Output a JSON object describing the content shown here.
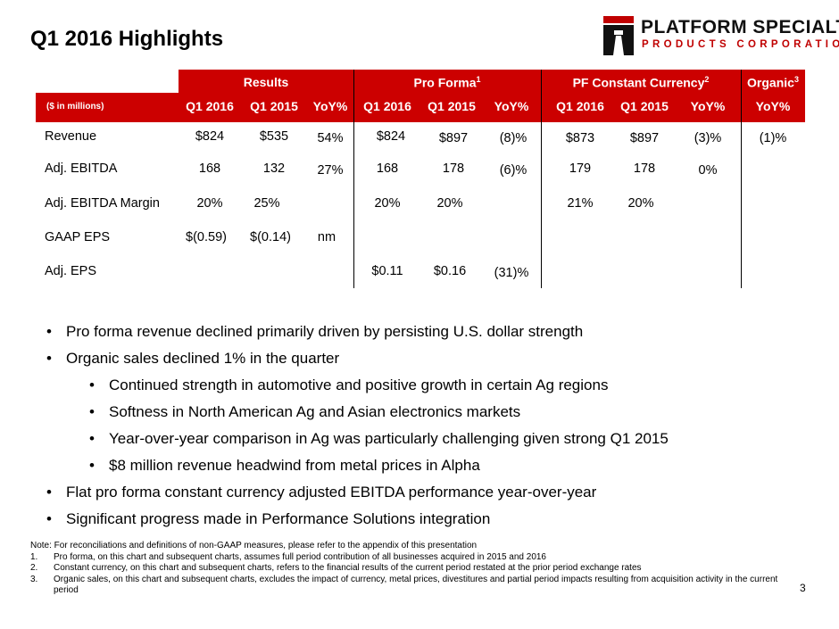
{
  "title": "Q1 2016 Highlights",
  "logo": {
    "line1": "PLATFORM SPECIALTY",
    "line2": "PRODUCTS CORPORATION"
  },
  "table": {
    "units": "($ in millions)",
    "groups": {
      "results": "Results",
      "pro_forma": "Pro Forma",
      "pro_forma_sup": "1",
      "pf_cc": "PF Constant Currency",
      "pf_cc_sup": "2",
      "organic": "Organic",
      "organic_sup": "3"
    },
    "columns": [
      "Q1 2016",
      "Q1 2015",
      "YoY%",
      "Q1 2016",
      "Q1 2015",
      "YoY%",
      "Q1 2016",
      "Q1 2015",
      "YoY%",
      "YoY%"
    ],
    "rows": [
      {
        "label": "Revenue",
        "cells": [
          "$824",
          "$535",
          "54%",
          "$824",
          "$897",
          "(8)%",
          "$873",
          "$897",
          "(3)%",
          "(1)%"
        ]
      },
      {
        "label": "Adj. EBITDA",
        "cells": [
          "168",
          "132",
          "27%",
          "168",
          "178",
          "(6)%",
          "179",
          "178",
          "0%",
          ""
        ]
      },
      {
        "label": "Adj. EBITDA Margin",
        "cells": [
          "20%",
          "25%",
          "",
          "20%",
          "20%",
          "",
          "21%",
          "20%",
          "",
          ""
        ]
      },
      {
        "label": "GAAP EPS",
        "cells": [
          "$(0.59)",
          "$(0.14)",
          "nm",
          "",
          "",
          "",
          "",
          "",
          "",
          ""
        ]
      },
      {
        "label": "Adj. EPS",
        "cells": [
          "",
          "",
          "",
          "$0.11",
          "$0.16",
          "(31)%",
          "",
          "",
          "",
          ""
        ]
      }
    ]
  },
  "bullets": [
    "Pro forma revenue declined primarily driven by persisting U.S. dollar strength",
    "Organic sales declined 1% in the quarter",
    "Continued strength in automotive and positive growth in certain Ag regions",
    "Softness in North American Ag and Asian electronics markets",
    "Year-over-year comparison in Ag was particularly challenging given strong Q1 2015",
    "$8 million revenue headwind from metal prices in Alpha",
    "Flat pro forma constant currency adjusted EBITDA performance year-over-year",
    "Significant progress made in Performance Solutions integration"
  ],
  "notes": {
    "intro": "Note: For reconciliations and definitions of non-GAAP measures, please refer to the appendix of this presentation",
    "items": [
      {
        "num": "1.",
        "text": "Pro forma, on this chart and subsequent charts, assumes full period contribution of all businesses acquired in 2015 and 2016"
      },
      {
        "num": "2.",
        "text": "Constant currency, on this chart and subsequent charts, refers to the financial results of the current period restated at the prior period exchange rates"
      },
      {
        "num": "3.",
        "text": "Organic sales, on this chart and subsequent charts, excludes the impact of currency, metal prices, divestitures and partial period impacts resulting from acquisition activity in the current period"
      }
    ]
  },
  "page_number": "3",
  "colors": {
    "brand_red": "#cc0000"
  }
}
